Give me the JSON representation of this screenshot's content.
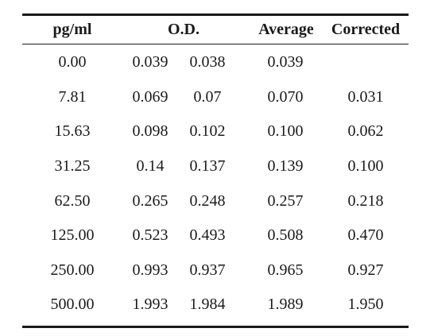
{
  "table": {
    "headers": {
      "pg": "pg/ml",
      "od": "O.D.",
      "average": "Average",
      "corrected": "Corrected"
    },
    "rows": [
      {
        "pg": "0.00",
        "od1": "0.039",
        "od2": "0.038",
        "average": "0.039",
        "corrected": ""
      },
      {
        "pg": "7.81",
        "od1": "0.069",
        "od2": "0.07",
        "average": "0.070",
        "corrected": "0.031"
      },
      {
        "pg": "15.63",
        "od1": "0.098",
        "od2": "0.102",
        "average": "0.100",
        "corrected": "0.062"
      },
      {
        "pg": "31.25",
        "od1": "0.14",
        "od2": "0.137",
        "average": "0.139",
        "corrected": "0.100"
      },
      {
        "pg": "62.50",
        "od1": "0.265",
        "od2": "0.248",
        "average": "0.257",
        "corrected": "0.218"
      },
      {
        "pg": "125.00",
        "od1": "0.523",
        "od2": "0.493",
        "average": "0.508",
        "corrected": "0.470"
      },
      {
        "pg": "250.00",
        "od1": "0.993",
        "od2": "0.937",
        "average": "0.965",
        "corrected": "0.927"
      },
      {
        "pg": "500.00",
        "od1": "1.993",
        "od2": "1.984",
        "average": "1.989",
        "corrected": "1.950"
      }
    ]
  }
}
